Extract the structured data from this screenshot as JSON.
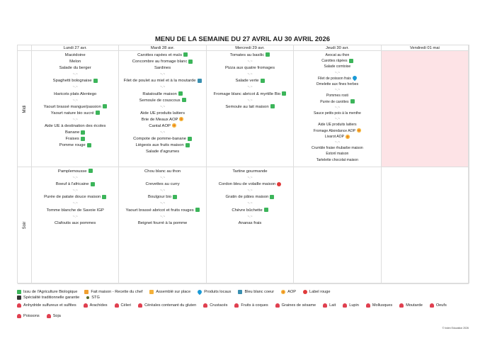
{
  "title": "MENU DE LA SEMAINE DU 27 AVRIL AU 30 AVRIL 2026",
  "days": [
    "Lundi 27 avr.",
    "Mardi 28 avr.",
    "Mercredi 29 avr.",
    "Jeudi 30 avr.",
    "Vendredi 01 mai"
  ],
  "rows": [
    "Midi",
    "Soir"
  ],
  "sep": "~.~",
  "midi": [
    [
      {
        "t": "Macédoine"
      },
      {
        "t": "Melon"
      },
      {
        "t": "Salade du berger"
      },
      {
        "s": 1
      },
      {
        "t": "Spaghetti bolognaise",
        "i": "bio"
      },
      {
        "s": 1
      },
      {
        "t": "Haricots plats Alentego"
      },
      {
        "s": 1
      },
      {
        "t": "Yaourt brassé mangue/passion",
        "i": "bio"
      },
      {
        "t": "Yaourt nature bio sucré",
        "i": "bio"
      },
      {
        "s": 1
      },
      {
        "t": "Aide UE à destination des écoles"
      },
      {
        "t": "Banane",
        "i": "bio"
      },
      {
        "t": "Fraises",
        "i": "bio"
      },
      {
        "t": "Pomme rouge",
        "i": "bio"
      }
    ],
    [
      {
        "t": "Carottes rapées et maïs",
        "i": "bio"
      },
      {
        "t": "Concombre au fromage blanc",
        "i": "bio"
      },
      {
        "t": "Sardines"
      },
      {
        "s": 1
      },
      {
        "t": "Filet de poulet au miel et à la moutarde",
        "i": "bbc"
      },
      {
        "s": 1
      },
      {
        "t": "Ratatouille maison",
        "i": "bio"
      },
      {
        "t": "Semoule de couscous",
        "i": "bio"
      },
      {
        "s": 1
      },
      {
        "t": "Aide UE produits laitiers"
      },
      {
        "t": "Brie de Meaux AOP",
        "i": "aop"
      },
      {
        "t": "Cantal AOP",
        "i": "aop"
      },
      {
        "s": 1
      },
      {
        "t": "Compote de pomme-banane",
        "i": "bio"
      },
      {
        "t": "Liégeois aux fruits maison",
        "i": "bio"
      },
      {
        "t": "Salade d'agrumes"
      }
    ],
    [
      {
        "t": "Tomates au basilic",
        "i": "bio"
      },
      {
        "s": 1
      },
      {
        "t": "Pizza aux quatre fromages"
      },
      {
        "s": 1
      },
      {
        "t": "Salade verte",
        "i": "bio"
      },
      {
        "s": 1
      },
      {
        "t": "Fromage blanc abricot & myrtille Bio",
        "i": "bio"
      },
      {
        "s": 1
      },
      {
        "t": "Semoule au lait maison",
        "i": "bio"
      }
    ],
    [
      {
        "t": "Avocat au thon"
      },
      {
        "t": "Carottes râpées",
        "i": "bio"
      },
      {
        "t": "Salade comtoise"
      },
      {
        "s": 1
      },
      {
        "t": "Filet de poisson frais",
        "i": "loc"
      },
      {
        "t": "Omelette aux fines herbes"
      },
      {
        "s": 1
      },
      {
        "t": "Pommes rosti"
      },
      {
        "t": "Purée de carottes",
        "i": "bio"
      },
      {
        "s": 1
      },
      {
        "t": "Sauce petits pois à la menthe"
      },
      {
        "s": 1
      },
      {
        "t": "Aide UE produits laitiers"
      },
      {
        "t": "Fromage Abondance AOP",
        "i": "aop"
      },
      {
        "t": "Livarot AOP",
        "i": "aop"
      },
      {
        "s": 1
      },
      {
        "t": "Crumble fraise rhubarbe maison"
      },
      {
        "t": "Estonl maison"
      },
      {
        "t": "Tartelette chocolat maison"
      }
    ],
    []
  ],
  "soir": [
    [
      {
        "t": "Pamplemousse",
        "i": "bio"
      },
      {
        "s": 1
      },
      {
        "t": "Boeuf à l'africaine",
        "i": "bio"
      },
      {
        "s": 1
      },
      {
        "t": "Purée de patate douce maison",
        "i": "bio"
      },
      {
        "s": 1
      },
      {
        "t": "Tomme blanche de Savoie IGP"
      },
      {
        "s": 1
      },
      {
        "t": "Clafoutis aux pommes"
      }
    ],
    [
      {
        "t": "Chou blanc au thon"
      },
      {
        "s": 1
      },
      {
        "t": "Crevettes au curry"
      },
      {
        "s": 1
      },
      {
        "t": "Boulgour bio",
        "i": "bio"
      },
      {
        "s": 1
      },
      {
        "t": "Yaourt brassé abricot et fruits rouges",
        "i": "bio"
      },
      {
        "s": 1
      },
      {
        "t": "Beignet fourré à la pomme"
      }
    ],
    [
      {
        "t": "Tartine gourmande"
      },
      {
        "s": 1
      },
      {
        "t": "Cordon bleu de volaille maison",
        "i": "lr"
      },
      {
        "s": 1
      },
      {
        "t": "Gratin de pâtes maison",
        "i": "bio"
      },
      {
        "s": 1
      },
      {
        "t": "Chèvre bûchette",
        "i": "bio"
      },
      {
        "s": 1
      },
      {
        "t": "Ananas frais"
      }
    ],
    [],
    []
  ],
  "legend_labels": [
    {
      "t": "Issu de l'Agriculture Biologique",
      "i": "bio"
    },
    {
      "t": "Fait maison - Recette du chef",
      "i": "fm"
    },
    {
      "t": "Assemblé sur place",
      "i": "asm"
    },
    {
      "t": "Produits locaux",
      "i": "loc"
    },
    {
      "t": "Bleu blanc coeur",
      "i": "bbc"
    },
    {
      "t": "AOP",
      "i": "aop"
    },
    {
      "t": "Label rouge",
      "i": "lr"
    },
    {
      "t": "Spécialité traditionnelle garantie",
      "i": "stg"
    },
    {
      "t": "STG",
      "i": "stgd"
    }
  ],
  "allergens": [
    "Anhydride sulfureux et sulfites",
    "Arachides",
    "Céleri",
    "Céréales contenant du gluten",
    "Crustacés",
    "Fruits à coques",
    "Graines de sésame",
    "Lait",
    "Lupin",
    "Mollusques",
    "Moutarde",
    "Oeufs",
    "Poissons",
    "Soja"
  ],
  "copyright": "© Index Education 2026"
}
